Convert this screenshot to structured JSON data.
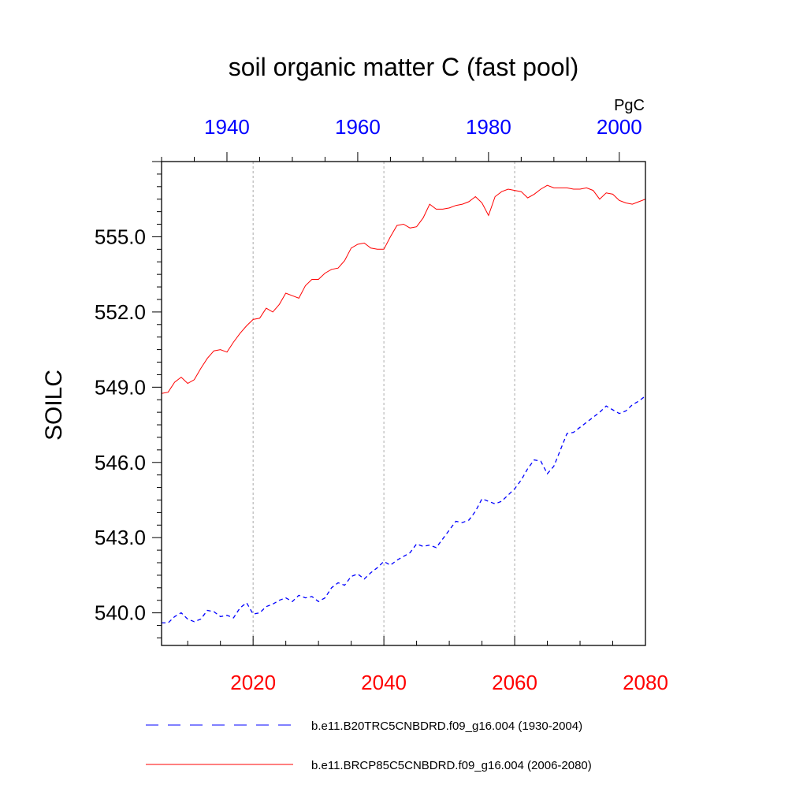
{
  "chart_data": {
    "type": "line",
    "title": "soil organic matter C (fast pool)",
    "units": "PgC",
    "ylabel": "SOILC",
    "ylim": [
      538.7,
      558.0
    ],
    "yticks": [
      "540.0",
      "543.0",
      "546.0",
      "549.0",
      "552.0",
      "555.0"
    ],
    "bottom_axis": {
      "color": "#ff0000",
      "xlim": [
        2006,
        2080
      ],
      "ticks": [
        2020,
        2040,
        2060,
        2080
      ]
    },
    "top_axis": {
      "color": "#0000ff",
      "xlim": [
        1930,
        2004
      ],
      "ticks": [
        1940,
        1960,
        1980,
        2000
      ]
    },
    "grid": "vertical dotted",
    "series": [
      {
        "name": "b.e11.B20TRC5CNBDRD.f09_g16.004 (1930-2004)",
        "axis": "top",
        "color": "#0000ff",
        "style": "dashed",
        "x": [
          1930,
          1931,
          1932,
          1933,
          1934,
          1935,
          1936,
          1937,
          1938,
          1939,
          1940,
          1941,
          1942,
          1943,
          1944,
          1945,
          1946,
          1947,
          1948,
          1949,
          1950,
          1951,
          1952,
          1953,
          1954,
          1955,
          1956,
          1957,
          1958,
          1959,
          1960,
          1961,
          1962,
          1963,
          1964,
          1965,
          1966,
          1967,
          1968,
          1969,
          1970,
          1971,
          1972,
          1973,
          1974,
          1975,
          1976,
          1977,
          1978,
          1979,
          1980,
          1981,
          1982,
          1983,
          1984,
          1985,
          1986,
          1987,
          1988,
          1989,
          1990,
          1991,
          1992,
          1993,
          1994,
          1995,
          1996,
          1997,
          1998,
          1999,
          2000,
          2001,
          2002,
          2003,
          2004
        ],
        "y": [
          539.6,
          539.6,
          539.85,
          540.0,
          539.75,
          539.65,
          539.75,
          540.1,
          540.05,
          539.85,
          539.9,
          539.8,
          540.2,
          540.4,
          539.95,
          540.0,
          540.25,
          540.35,
          540.5,
          540.6,
          540.45,
          540.7,
          540.6,
          540.65,
          540.45,
          540.6,
          541.0,
          541.2,
          541.1,
          541.45,
          541.55,
          541.35,
          541.6,
          541.8,
          542.05,
          541.9,
          542.1,
          542.25,
          542.4,
          542.75,
          542.65,
          542.7,
          542.6,
          542.95,
          543.3,
          543.65,
          543.6,
          543.7,
          544.05,
          544.55,
          544.45,
          544.35,
          544.45,
          544.7,
          544.95,
          545.3,
          545.75,
          546.1,
          546.05,
          545.55,
          545.85,
          546.5,
          547.15,
          547.2,
          547.4,
          547.6,
          547.8,
          548.0,
          548.25,
          548.1,
          547.95,
          548.05,
          548.3,
          548.45,
          548.65
        ]
      },
      {
        "name": "b.e11.BRCP85C5CNBDRD.f09_g16.004 (2006-2080)",
        "axis": "bottom",
        "color": "#ff0000",
        "style": "solid",
        "x": [
          2006,
          2007,
          2008,
          2009,
          2010,
          2011,
          2012,
          2013,
          2014,
          2015,
          2016,
          2017,
          2018,
          2019,
          2020,
          2021,
          2022,
          2023,
          2024,
          2025,
          2026,
          2027,
          2028,
          2029,
          2030,
          2031,
          2032,
          2033,
          2034,
          2035,
          2036,
          2037,
          2038,
          2039,
          2040,
          2041,
          2042,
          2043,
          2044,
          2045,
          2046,
          2047,
          2048,
          2049,
          2050,
          2051,
          2052,
          2053,
          2054,
          2055,
          2056,
          2057,
          2058,
          2059,
          2060,
          2061,
          2062,
          2063,
          2064,
          2065,
          2066,
          2067,
          2068,
          2069,
          2070,
          2071,
          2072,
          2073,
          2074,
          2075,
          2076,
          2077,
          2078,
          2079,
          2080
        ],
        "y": [
          548.75,
          548.8,
          549.2,
          549.4,
          549.15,
          549.3,
          549.75,
          550.15,
          550.45,
          550.5,
          550.4,
          550.8,
          551.15,
          551.45,
          551.7,
          551.75,
          552.15,
          552.0,
          552.3,
          552.75,
          552.65,
          552.55,
          553.05,
          553.3,
          553.3,
          553.55,
          553.7,
          553.75,
          554.05,
          554.55,
          554.7,
          554.75,
          554.55,
          554.5,
          554.5,
          555.0,
          555.45,
          555.5,
          555.35,
          555.4,
          555.75,
          556.3,
          556.1,
          556.1,
          556.15,
          556.25,
          556.3,
          556.4,
          556.6,
          556.35,
          555.85,
          556.6,
          556.8,
          556.9,
          556.85,
          556.8,
          556.55,
          556.7,
          556.9,
          557.05,
          556.95,
          556.95,
          556.95,
          556.9,
          556.9,
          556.95,
          556.85,
          556.5,
          556.75,
          556.7,
          556.45,
          556.35,
          556.3,
          556.4,
          556.5
        ]
      }
    ]
  }
}
